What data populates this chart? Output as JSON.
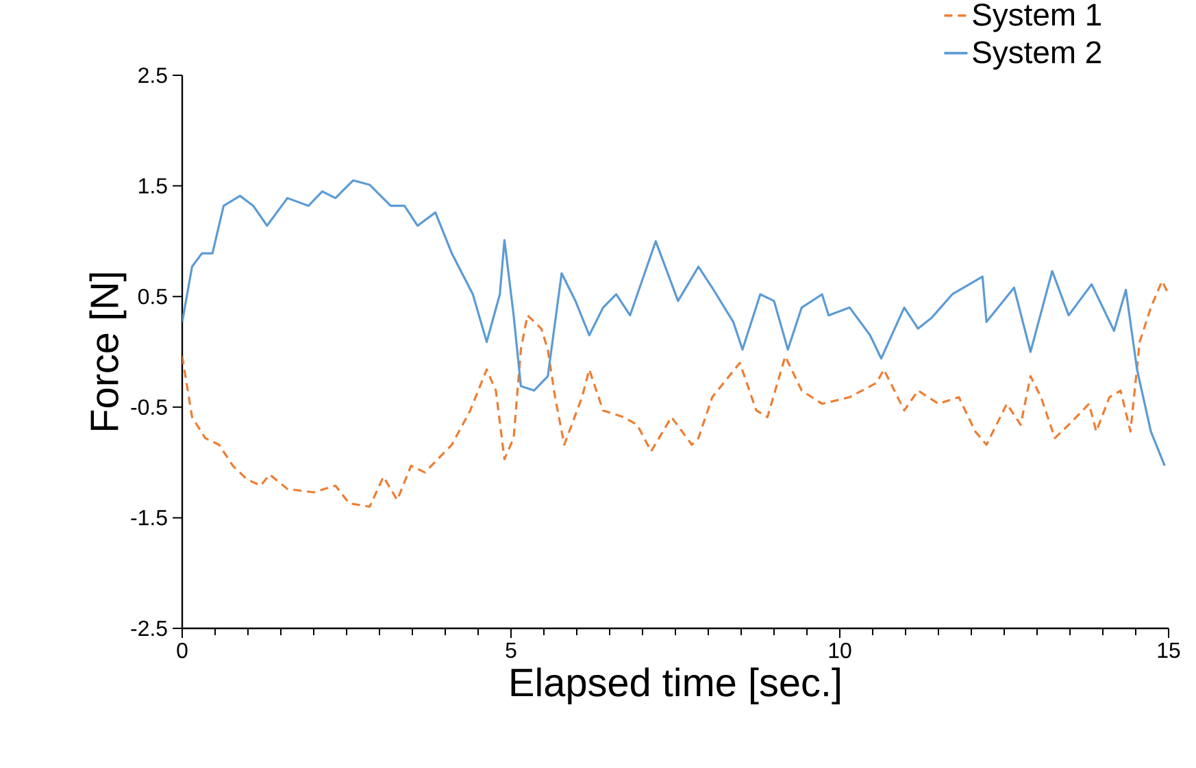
{
  "chart_data": {
    "type": "line",
    "xlabel": "Elapsed time [sec.]",
    "ylabel": "Force [N]",
    "xlim": [
      0,
      15
    ],
    "xticks": [
      0,
      5,
      10,
      15
    ],
    "ylim": [
      -2.5,
      2.5
    ],
    "yticks": [
      -2.5,
      -1.5,
      -0.5,
      0.5,
      1.5,
      2.5
    ],
    "grid": false,
    "legend": "top right",
    "marker": "none",
    "series": [
      {
        "name": "System 1",
        "color": "#ed7d31",
        "line_style": "dashed",
        "x": [
          0,
          0.15,
          0.35,
          0.56,
          0.77,
          0.98,
          1.19,
          1.33,
          1.6,
          2.0,
          2.33,
          2.54,
          2.85,
          3.06,
          3.27,
          3.48,
          3.69,
          4.1,
          4.38,
          4.63,
          4.77,
          4.9,
          5.04,
          5.15,
          5.25,
          5.46,
          5.56,
          5.67,
          5.81,
          6.08,
          6.19,
          6.4,
          6.71,
          6.92,
          7.13,
          7.44,
          7.75,
          7.85,
          8.06,
          8.48,
          8.73,
          8.9,
          9.17,
          9.42,
          9.73,
          10.15,
          10.56,
          10.67,
          10.98,
          11.19,
          11.5,
          11.81,
          12.06,
          12.23,
          12.54,
          12.75,
          12.9,
          13.06,
          13.27,
          13.48,
          13.79,
          13.9,
          14.1,
          14.27,
          14.42,
          14.56,
          14.73,
          14.9,
          15.0
        ],
        "values": [
          -0.04,
          -0.59,
          -0.78,
          -0.84,
          -1.03,
          -1.15,
          -1.21,
          -1.11,
          -1.24,
          -1.27,
          -1.21,
          -1.37,
          -1.4,
          -1.13,
          -1.34,
          -1.03,
          -1.09,
          -0.84,
          -0.53,
          -0.16,
          -0.35,
          -0.97,
          -0.78,
          0.02,
          0.33,
          0.21,
          0.02,
          -0.41,
          -0.84,
          -0.41,
          -0.16,
          -0.53,
          -0.59,
          -0.66,
          -0.9,
          -0.59,
          -0.84,
          -0.78,
          -0.41,
          -0.1,
          -0.53,
          -0.59,
          -0.04,
          -0.35,
          -0.47,
          -0.41,
          -0.28,
          -0.16,
          -0.53,
          -0.35,
          -0.47,
          -0.41,
          -0.72,
          -0.84,
          -0.47,
          -0.66,
          -0.22,
          -0.41,
          -0.78,
          -0.66,
          -0.47,
          -0.72,
          -0.41,
          -0.35,
          -0.72,
          0.09,
          0.4,
          0.64,
          0.52
        ]
      },
      {
        "name": "System 2",
        "color": "#5b9bd5",
        "line_style": "solid",
        "x": [
          0,
          0.15,
          0.3,
          0.46,
          0.63,
          0.88,
          1.08,
          1.29,
          1.6,
          1.92,
          2.13,
          2.33,
          2.6,
          2.85,
          3.17,
          3.38,
          3.58,
          3.85,
          4.1,
          4.42,
          4.63,
          4.83,
          4.9,
          5.04,
          5.15,
          5.35,
          5.56,
          5.77,
          5.98,
          6.19,
          6.4,
          6.6,
          6.81,
          7.2,
          7.54,
          7.85,
          8.06,
          8.38,
          8.52,
          8.79,
          9.0,
          9.21,
          9.42,
          9.73,
          9.83,
          10.15,
          10.46,
          10.63,
          10.88,
          10.98,
          11.19,
          11.4,
          11.71,
          12.17,
          12.23,
          12.65,
          12.9,
          13.23,
          13.48,
          13.83,
          14.17,
          14.35,
          14.52,
          14.73,
          14.94
        ],
        "values": [
          0.27,
          0.77,
          0.89,
          0.89,
          1.32,
          1.41,
          1.32,
          1.14,
          1.39,
          1.32,
          1.45,
          1.39,
          1.55,
          1.51,
          1.32,
          1.32,
          1.14,
          1.26,
          0.89,
          0.52,
          0.09,
          0.52,
          1.01,
          0.33,
          -0.31,
          -0.35,
          -0.22,
          0.71,
          0.46,
          0.15,
          0.4,
          0.52,
          0.33,
          1.0,
          0.46,
          0.77,
          0.58,
          0.27,
          0.02,
          0.52,
          0.46,
          0.02,
          0.4,
          0.52,
          0.33,
          0.4,
          0.15,
          -0.06,
          0.27,
          0.4,
          0.21,
          0.31,
          0.52,
          0.68,
          0.27,
          0.58,
          0.0,
          0.73,
          0.33,
          0.61,
          0.19,
          0.56,
          -0.16,
          -0.72,
          -1.03
        ]
      }
    ]
  }
}
